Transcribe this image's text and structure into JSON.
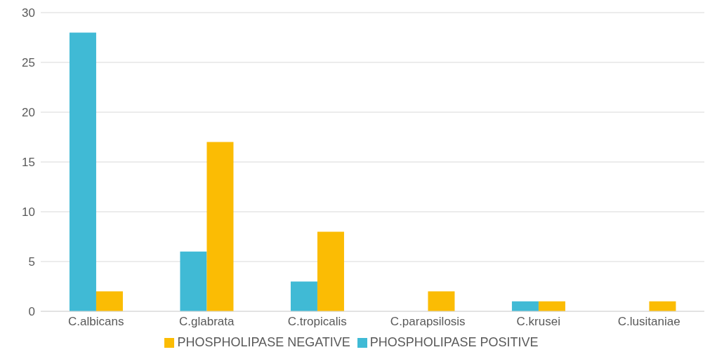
{
  "chart_data": {
    "type": "bar",
    "categories": [
      "C.albicans",
      "C.glabrata",
      "C.tropicalis",
      "C.parapsilosis",
      "C.krusei",
      "C.lusitaniae"
    ],
    "series": [
      {
        "name": "PHOSPHOLIPASE POSITIVE",
        "color": "#40bad5",
        "values": [
          28,
          6,
          3,
          0,
          1,
          0
        ]
      },
      {
        "name": "PHOSPHOLIPASE NEGATIVE",
        "color": "#fbbc04",
        "values": [
          2,
          17,
          8,
          2,
          1,
          1
        ]
      }
    ],
    "ylim": [
      0,
      30
    ],
    "yticks": [
      0,
      5,
      10,
      15,
      20,
      25,
      30
    ],
    "grid": "y",
    "legend": "bottom"
  }
}
